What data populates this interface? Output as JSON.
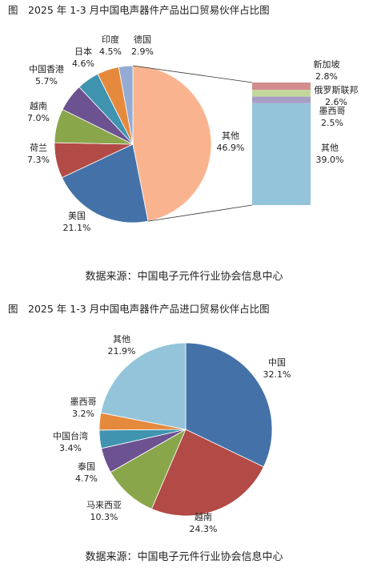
{
  "chart_data": [
    {
      "type": "pie",
      "title": "图　2025 年 1-3 月中国电声器件产品出口贸易伙伴占比图",
      "unit": "%",
      "slices": [
        {
          "label": "其他",
          "value": 46.9,
          "value_text": "46.9%",
          "color": "#F9B48F"
        },
        {
          "label": "美国",
          "value": 21.1,
          "value_text": "21.1%",
          "color": "#4472A8"
        },
        {
          "label": "荷兰",
          "value": 7.3,
          "value_text": "7.3%",
          "color": "#B24A46"
        },
        {
          "label": "越南",
          "value": 7.0,
          "value_text": "7.0%",
          "color": "#8AA64B"
        },
        {
          "label": "中国香港",
          "value": 5.7,
          "value_text": "5.7%",
          "color": "#6C5290"
        },
        {
          "label": "日本",
          "value": 4.6,
          "value_text": "4.6%",
          "color": "#4094AF"
        },
        {
          "label": "印度",
          "value": 4.5,
          "value_text": "4.5%",
          "color": "#E58A3D"
        },
        {
          "label": "德国",
          "value": 2.9,
          "value_text": "2.9%",
          "color": "#94ABD3"
        }
      ],
      "breakout_bar": [
        {
          "label": "新加坡",
          "value": 2.8,
          "value_text": "2.8%",
          "color": "#D28D8E"
        },
        {
          "label": "俄罗斯联邦",
          "value": 2.6,
          "value_text": "2.6%",
          "color": "#C3D79C"
        },
        {
          "label": "墨西哥",
          "value": 2.5,
          "value_text": "2.5%",
          "color": "#A79EC5"
        },
        {
          "label": "其他",
          "value": 39.0,
          "value_text": "39.0%",
          "color": "#94C4D9"
        }
      ],
      "source": "数据来源：中国电子元件行业协会信息中心"
    },
    {
      "type": "pie",
      "title": "图　2025 年 1-3 月中国电声器件产品进口贸易伙伴占比图",
      "unit": "%",
      "slices": [
        {
          "label": "中国",
          "value": 32.1,
          "value_text": "32.1%",
          "color": "#4472A8"
        },
        {
          "label": "越南",
          "value": 24.3,
          "value_text": "24.3%",
          "color": "#B24A46"
        },
        {
          "label": "马来西亚",
          "value": 10.3,
          "value_text": "10.3%",
          "color": "#8AA64B"
        },
        {
          "label": "泰国",
          "value": 4.7,
          "value_text": "4.7%",
          "color": "#6C5290"
        },
        {
          "label": "中国台湾",
          "value": 3.4,
          "value_text": "3.4%",
          "color": "#4094AF"
        },
        {
          "label": "墨西哥",
          "value": 3.2,
          "value_text": "3.2%",
          "color": "#E58A3D"
        },
        {
          "label": "其他",
          "value": 21.9,
          "value_text": "21.9%",
          "color": "#94C4D9"
        }
      ],
      "source": "数据来源：中国电子元件行业协会信息中心"
    }
  ]
}
